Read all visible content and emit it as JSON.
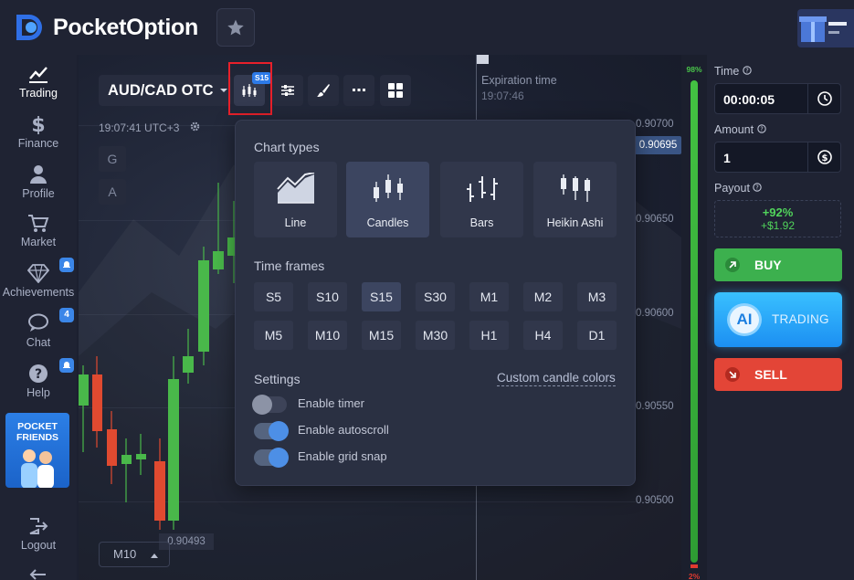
{
  "brand": {
    "logo_text": "PocketOption"
  },
  "sidebar": {
    "items": [
      {
        "label": "Trading",
        "icon": "chart-icon",
        "active": true
      },
      {
        "label": "Finance",
        "icon": "dollar-icon"
      },
      {
        "label": "Profile",
        "icon": "user-icon"
      },
      {
        "label": "Market",
        "icon": "cart-icon"
      },
      {
        "label": "Achievements",
        "icon": "diamond-icon",
        "badge_icon": "bell-icon"
      },
      {
        "label": "Chat",
        "icon": "chat-icon",
        "badge": "4"
      },
      {
        "label": "Help",
        "icon": "help-icon",
        "badge_icon": "bell-icon"
      }
    ],
    "promo": {
      "line1": "POCKET",
      "line2": "FRIENDS"
    },
    "logout_label": "Logout"
  },
  "toolbar": {
    "asset_label": "AUD/CAD OTC",
    "chart_type_badge": "S15",
    "clock": "19:07:41 UTC+3",
    "g_label": "G",
    "a_label": "A",
    "timeframe_label": "M10"
  },
  "chart": {
    "expiration_title": "Expiration time",
    "expiration_time": "19:07:46",
    "price_ticks": [
      "0.90700",
      "0.90650",
      "0.90600",
      "0.90550",
      "0.90500"
    ],
    "current_price": "0.90695",
    "low_price": "0.90493",
    "meter_top": "98%",
    "meter_bottom": "2%"
  },
  "chart_panel": {
    "chart_types_title": "Chart types",
    "chart_types": [
      {
        "label": "Line",
        "icon": "line-chart-icon"
      },
      {
        "label": "Candles",
        "icon": "candles-icon",
        "selected": true
      },
      {
        "label": "Bars",
        "icon": "bars-icon"
      },
      {
        "label": "Heikin Ashi",
        "icon": "heikin-ashi-icon"
      }
    ],
    "time_frames_title": "Time frames",
    "time_frames": [
      "S5",
      "S10",
      "S15",
      "S30",
      "M1",
      "M2",
      "M3",
      "M5",
      "M10",
      "M15",
      "M30",
      "H1",
      "H4",
      "D1"
    ],
    "selected_time_frame": "S15",
    "settings_title": "Settings",
    "custom_colors_link": "Custom candle colors",
    "toggles": [
      {
        "label": "Enable timer",
        "on": false
      },
      {
        "label": "Enable autoscroll",
        "on": true
      },
      {
        "label": "Enable grid snap",
        "on": true
      }
    ]
  },
  "trade": {
    "time_label": "Time",
    "time_value": "00:00:05",
    "amount_label": "Amount",
    "amount_value": "1",
    "payout_label": "Payout",
    "payout_percent": "+92%",
    "payout_amount": "+$1.92",
    "buy_label": "BUY",
    "ai_badge": "AI",
    "ai_label": "TRADING",
    "sell_label": "SELL"
  },
  "colors": {
    "buy": "#3cb04e",
    "sell": "#e34537",
    "accent": "#2d7ae8",
    "highlight": "#e8202a"
  }
}
